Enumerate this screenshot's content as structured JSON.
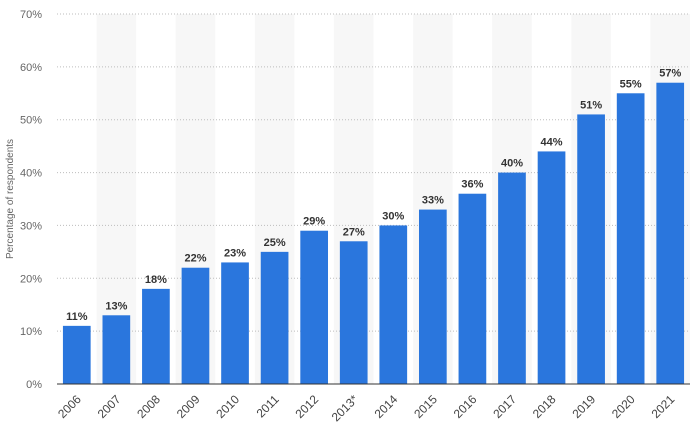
{
  "chart_data": {
    "type": "bar",
    "categories": [
      "2006",
      "2007",
      "2008",
      "2009",
      "2010",
      "2011",
      "2012",
      "2013*",
      "2014",
      "2015",
      "2016",
      "2017",
      "2018",
      "2019",
      "2020",
      "2021"
    ],
    "values": [
      11,
      13,
      18,
      22,
      23,
      25,
      29,
      27,
      30,
      33,
      36,
      40,
      44,
      51,
      55,
      57
    ],
    "value_labels": [
      "11%",
      "13%",
      "18%",
      "22%",
      "23%",
      "25%",
      "29%",
      "27%",
      "30%",
      "33%",
      "36%",
      "40%",
      "44%",
      "51%",
      "55%",
      "57%"
    ],
    "ylabel": "Percentage of respondents",
    "xlabel": "",
    "ylim": [
      0,
      70
    ],
    "yticks": [
      0,
      10,
      20,
      30,
      40,
      50,
      60,
      70
    ],
    "ytick_labels": [
      "0%",
      "10%",
      "20%",
      "30%",
      "40%",
      "50%",
      "60%",
      "70%"
    ],
    "grid": true,
    "colors": {
      "bar": "#2a76dd",
      "band": "#f7f7f7",
      "grid": "#bdbdbd",
      "axis": "#333333"
    }
  }
}
